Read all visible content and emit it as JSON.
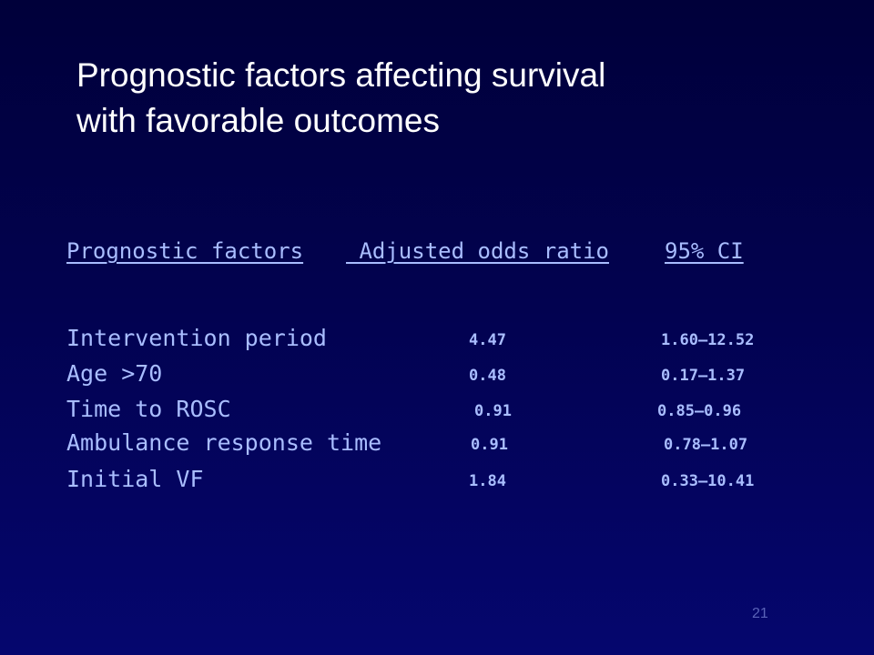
{
  "slide": {
    "title_line1": "Prognostic factors affecting survival",
    "title_line2": "with favorable outcomes",
    "number": "21"
  },
  "table": {
    "headers": [
      "Prognostic factors",
      " Adjusted odds ratio",
      "95% CI"
    ],
    "rows": [
      {
        "factor": "Intervention period",
        "odds_ratio": "4.47",
        "ci": "1.60—12.52"
      },
      {
        "factor": "Age >70",
        "odds_ratio": "0.48",
        "ci": "0.17—1.37"
      },
      {
        "factor": "Time to ROSC",
        "odds_ratio": "0.91",
        "ci": "0.85—0.96"
      },
      {
        "factor": "Ambulance response time",
        "odds_ratio": "0.91",
        "ci": "0.78—1.07"
      },
      {
        "factor": "Initial VF",
        "odds_ratio": "1.84",
        "ci": "0.33—10.41"
      }
    ]
  },
  "colors": {
    "background_top": "#00003a",
    "background_bottom": "#05066e",
    "title_text": "#ffffff",
    "table_text": "#a9bdff",
    "slide_number": "#5a63b8"
  }
}
